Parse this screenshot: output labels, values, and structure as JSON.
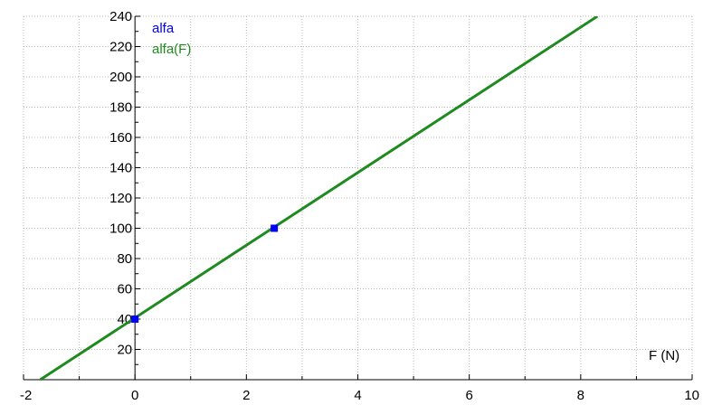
{
  "chart_data": {
    "type": "line",
    "title": "",
    "xlabel": "F (N)",
    "ylabel": "",
    "xlim": [
      -2,
      10
    ],
    "ylim": [
      0,
      240
    ],
    "x_ticks": [
      -2,
      0,
      2,
      4,
      6,
      8,
      10
    ],
    "x_tick_labels": [
      "-2",
      "0",
      "2",
      "4",
      "6",
      "8",
      "10"
    ],
    "y_ticks": [
      20,
      40,
      60,
      80,
      100,
      120,
      140,
      160,
      180,
      200,
      220,
      240
    ],
    "y_tick_labels": [
      "20",
      "40",
      "60",
      "80",
      "100",
      "120",
      "140",
      "160",
      "180",
      "200",
      "220",
      "240"
    ],
    "grid": true,
    "legend_position": "top-left",
    "series": [
      {
        "name": "alfa",
        "kind": "scatter",
        "color": "#0000ff",
        "points": [
          [
            0,
            40
          ],
          [
            2.5,
            100
          ]
        ]
      },
      {
        "name": "alfa(F)",
        "kind": "line",
        "color": "#1f8a1f",
        "points": [
          [
            -1.7,
            0
          ],
          [
            8.3,
            240
          ]
        ]
      }
    ]
  }
}
